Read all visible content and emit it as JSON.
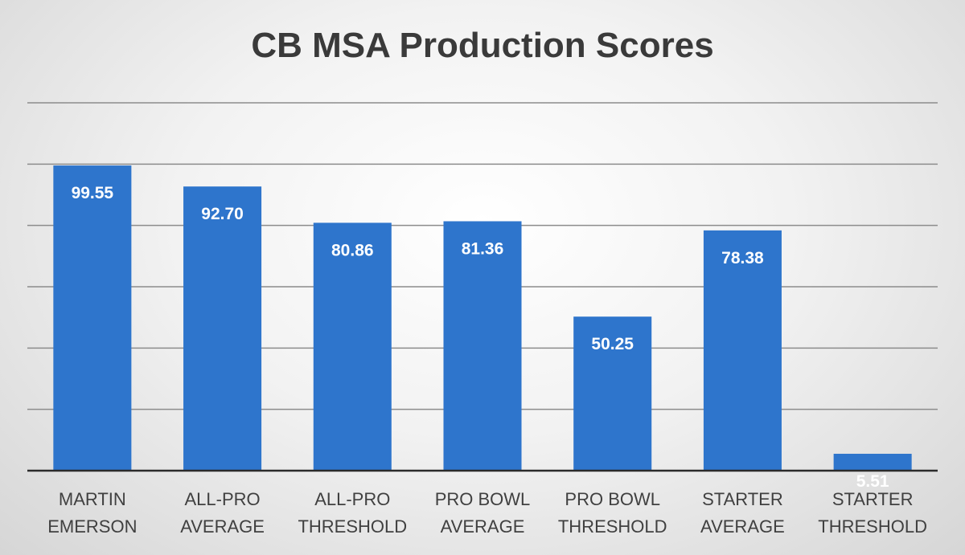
{
  "chart_data": {
    "type": "bar",
    "title": "CB MSA Production Scores",
    "categories": [
      [
        "MARTIN",
        "EMERSON"
      ],
      [
        "ALL-PRO",
        "AVERAGE"
      ],
      [
        "ALL-PRO",
        "THRESHOLD"
      ],
      [
        "PRO BOWL",
        "AVERAGE"
      ],
      [
        "PRO BOWL",
        "THRESHOLD"
      ],
      [
        "STARTER",
        "AVERAGE"
      ],
      [
        "STARTER",
        "THRESHOLD"
      ]
    ],
    "values": [
      99.55,
      92.7,
      80.86,
      81.36,
      50.25,
      78.38,
      5.51
    ],
    "data_labels": [
      "99.55",
      "92.70",
      "80.86",
      "81.36",
      "50.25",
      "78.38",
      "5.51"
    ],
    "ylim": [
      0,
      120
    ],
    "grid": true,
    "legend": "none",
    "colors": {
      "bar": "#2e75cc",
      "grid": "#8c8c8c",
      "axis": "#2b2b2b"
    }
  }
}
